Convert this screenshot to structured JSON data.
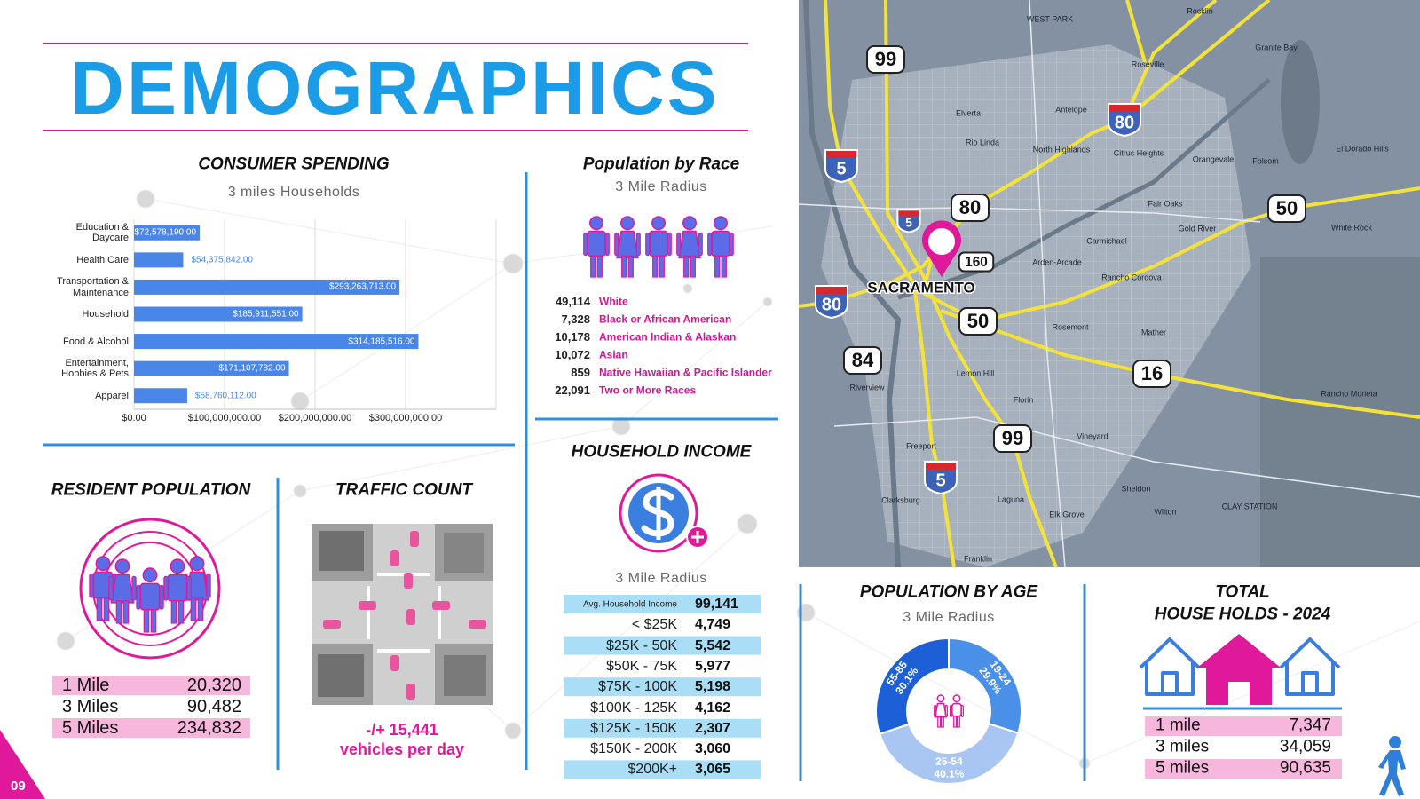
{
  "header": {
    "title": "DEMOGRAPHICS",
    "page_number": "09"
  },
  "chart_data": [
    {
      "type": "bar",
      "orientation": "horizontal",
      "title": "CONSUMER SPENDING",
      "subtitle": "3 miles Households",
      "categories": [
        "Education & Daycare",
        "Health Care",
        "Transportation & Maintenance",
        "Household",
        "Food & Alcohol",
        "Entertainment, Hobbies & Pets",
        "Apparel"
      ],
      "values": [
        72578190,
        54375842,
        293263713,
        185911551,
        314185516,
        171107782,
        58760112
      ],
      "value_labels": [
        "$72,578,190.00",
        "$54,375,842.00",
        "$293,263,713.00",
        "$185,911,551.00",
        "$314,185,516.00",
        "$171,107,782.00",
        "$58,760,112.00"
      ],
      "color": "#4a86e8",
      "xlim": [
        0,
        400000000
      ],
      "xticks": [
        {
          "value": 0,
          "label": "$0.00"
        },
        {
          "value": 100000000,
          "label": "$100,000,000.00"
        },
        {
          "value": 200000000,
          "label": "$200,000,000.00"
        },
        {
          "value": 300000000,
          "label": "$300,000,000.00"
        }
      ],
      "grid": true
    },
    {
      "type": "pie",
      "donut": true,
      "title": "POPULATION BY AGE",
      "subtitle": "3 Mile Radius",
      "categories": [
        "19-24",
        "25-54",
        "55-85"
      ],
      "values": [
        29.9,
        40.1,
        30.1
      ],
      "value_labels": [
        "29.9%",
        "40.1%",
        "30.1%"
      ],
      "colors": [
        "#4a8fe8",
        "#a9c5f2",
        "#1d5fd6"
      ]
    }
  ],
  "population_by_race": {
    "title": "Population by Race",
    "subtitle": "3 Mile Radius",
    "rows": [
      [
        "49,114",
        "White"
      ],
      [
        "7,328",
        "Black or African American"
      ],
      [
        "10,178",
        "American Indian & Alaskan"
      ],
      [
        "10,072",
        "Asian"
      ],
      [
        "859",
        "Native Hawaiian & Pacific Islander"
      ],
      [
        "22,091",
        "Two or More Races"
      ]
    ]
  },
  "household_income": {
    "title": "HOUSEHOLD INCOME",
    "subtitle": "3 Mile Radius",
    "rows": [
      [
        "Avg. Household Income",
        "99,141"
      ],
      [
        "< $25K",
        "4,749"
      ],
      [
        "$25K - 50K",
        "5,542"
      ],
      [
        "$50K - 75K",
        "5,977"
      ],
      [
        "$75K - 100K",
        "5,198"
      ],
      [
        "$100K - 125K",
        "4,162"
      ],
      [
        "$125K - 150K",
        "2,307"
      ],
      [
        "$150K - 200K",
        "3,060"
      ],
      [
        "$200K+",
        "3,065"
      ]
    ]
  },
  "resident_population": {
    "title": "RESIDENT POPULATION",
    "rows": [
      [
        "1 Mile",
        "20,320"
      ],
      [
        "3 Miles",
        "90,482"
      ],
      [
        "5 Miles",
        "234,832"
      ]
    ]
  },
  "traffic_count": {
    "title": "TRAFFIC COUNT",
    "count": "-/+ 15,441",
    "unit": "vehicles per day"
  },
  "total_households": {
    "title_lines": [
      "TOTAL",
      "HOUSE HOLDS - 2024"
    ],
    "rows": [
      [
        "1 mile",
        "7,347"
      ],
      [
        "3 miles",
        "34,059"
      ],
      [
        "5 miles",
        "90,635"
      ]
    ]
  },
  "map": {
    "city": "SACRAMENTO",
    "highways": [
      "99",
      "80",
      "5",
      "80",
      "50",
      "5",
      "160",
      "80",
      "50",
      "84",
      "16",
      "99",
      "5"
    ],
    "places": [
      "Rocklin",
      "Granite Bay",
      "Roseville",
      "Citrus Heights",
      "Orangevale",
      "Folsom",
      "Fair Oaks",
      "Carmichael",
      "Arden-Arcade",
      "Rancho Cordova",
      "Rosemont",
      "Mather",
      "Florin",
      "Vineyard",
      "Elk Grove",
      "Laguna",
      "Freeport",
      "Clarksburg",
      "Sheldon",
      "Wilton",
      "Elverta",
      "Rio Linda",
      "Antelope",
      "North Highlands",
      "Gold River",
      "Lemon Hill",
      "Riverview",
      "CLAY STATION",
      "White Rock",
      "El Dorado Hills",
      "Rancho Murieta",
      "WEST PARK",
      "Franklin"
    ]
  }
}
